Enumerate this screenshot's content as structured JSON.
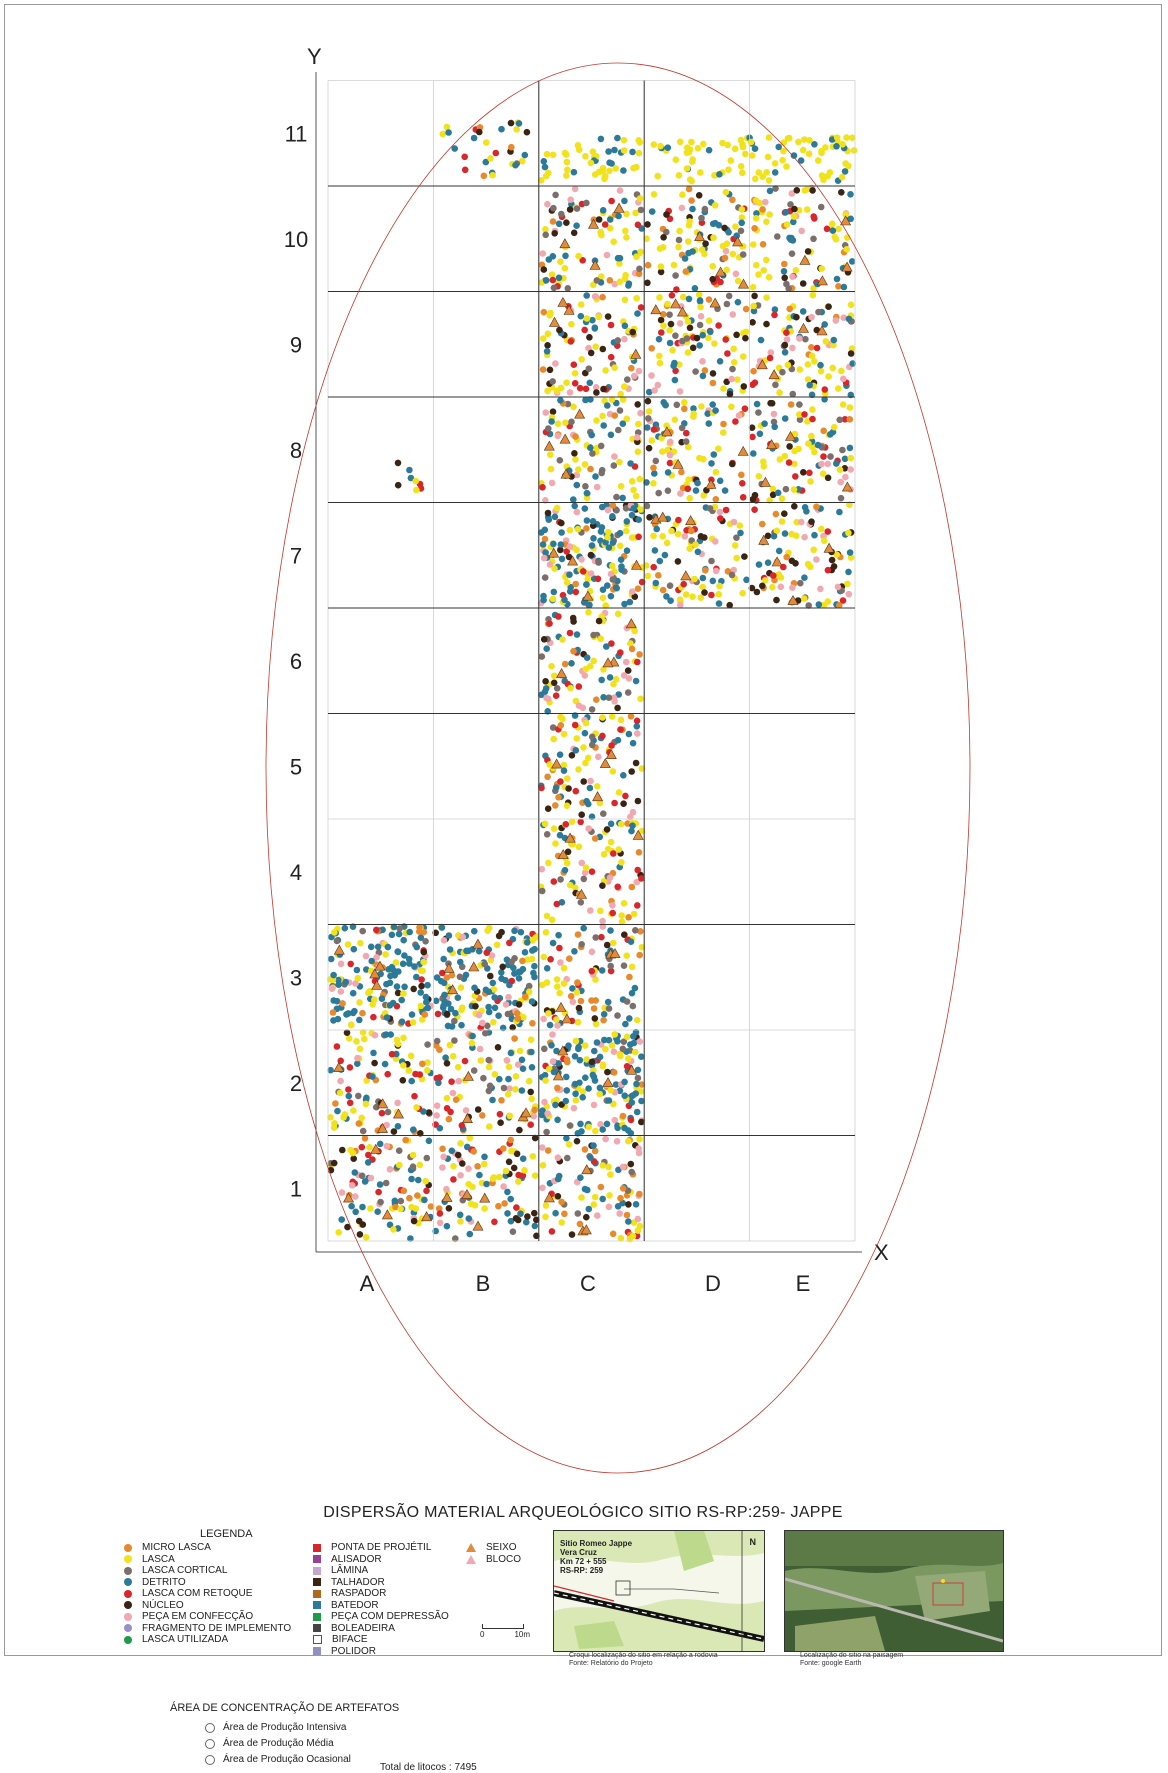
{
  "map": {
    "y_axis_label": "Y",
    "x_axis_label": "X",
    "rows": [
      "1",
      "2",
      "3",
      "4",
      "5",
      "6",
      "7",
      "8",
      "9",
      "10",
      "11"
    ],
    "columns": [
      "A",
      "B",
      "C",
      "D",
      "E"
    ],
    "excavated_units": [
      {
        "col": "A",
        "rows": [
          1,
          2,
          3
        ]
      },
      {
        "col": "B",
        "rows": [
          1,
          2,
          3
        ]
      },
      {
        "col": "C",
        "rows": [
          1,
          2,
          3,
          4,
          5,
          6,
          7,
          8,
          9,
          10
        ]
      },
      {
        "col": "D",
        "rows": [
          7,
          8,
          9,
          10
        ]
      },
      {
        "col": "E",
        "rows": [
          7,
          8,
          9,
          10
        ]
      }
    ],
    "concentration_outline": "ellipse"
  },
  "title": "DISPERSÃO MATERIAL ARQUEOLÓGICO SITIO RS-RP:259- JAPPE",
  "legend": {
    "title": "LEGENDA",
    "col1": [
      {
        "label": "MICRO LASCA",
        "shape": "circle",
        "color": "#e8892c"
      },
      {
        "label": "LASCA",
        "shape": "circle",
        "color": "#f2e21a"
      },
      {
        "label": "LASCA CORTICAL",
        "shape": "circle",
        "color": "#7b6f6b"
      },
      {
        "label": "DETRITO",
        "shape": "circle",
        "color": "#2c7a9a"
      },
      {
        "label": "LASCA COM RETOQUE",
        "shape": "circle",
        "color": "#d9262b"
      },
      {
        "label": "NÚCLEO",
        "shape": "circle",
        "color": "#3a2414"
      },
      {
        "label": "PEÇA EM CONFECÇÃO",
        "shape": "circle",
        "color": "#f2a8b0"
      },
      {
        "label": "FRAGMENTO DE IMPLEMENTO",
        "shape": "circle",
        "color": "#9a8fc7"
      },
      {
        "label": "LASCA UTILIZADA",
        "shape": "circle",
        "color": "#1e9a4a"
      }
    ],
    "col2": [
      {
        "label": "PONTA DE PROJÉTIL",
        "shape": "square",
        "color": "#d9262b"
      },
      {
        "label": "ALISADOR",
        "shape": "square",
        "color": "#9b3f96"
      },
      {
        "label": "LÂMINA",
        "shape": "square",
        "color": "#c7a6cf"
      },
      {
        "label": "TALHADOR",
        "shape": "square",
        "color": "#3a2414"
      },
      {
        "label": "RASPADOR",
        "shape": "square",
        "color": "#b06a1f"
      },
      {
        "label": "BATEDOR",
        "shape": "square",
        "color": "#2c7a9a"
      },
      {
        "label": "PEÇA COM DEPRESSÃO",
        "shape": "square",
        "color": "#1e9a4a"
      },
      {
        "label": "BOLEADEIRA",
        "shape": "square",
        "color": "#444444"
      },
      {
        "label": "BIFACE",
        "shape": "square-outline",
        "color": "#ffffff"
      },
      {
        "label": "POLIDOR",
        "shape": "square",
        "color": "#8f8fc0"
      }
    ],
    "col3": [
      {
        "label": "SEIXO",
        "shape": "triangle",
        "color": "#e08c3a"
      },
      {
        "label": "BLOCO",
        "shape": "triangle",
        "color": "#f2a8b0"
      }
    ]
  },
  "scale": {
    "start": "0",
    "end": "10m"
  },
  "concentration": {
    "title": "ÁREA DE CONCENTRAÇÃO DE ARTEFATOS",
    "items": [
      "Área de Produção Intensiva",
      "Área de Produção Média",
      "Área de Produção Ocasional"
    ],
    "total_label": "Total de litocos : 7495"
  },
  "sketch_inset": {
    "info_lines": [
      "Sitio Romeo Jappe",
      "Vera Cruz",
      "Km 72 + 555",
      "RS-RP: 259"
    ],
    "caption_lines": [
      "Croqui localização do sitio em relação a rodovia",
      "Fonte: Relatório do Projeto"
    ],
    "north": "N"
  },
  "satellite_inset": {
    "caption_lines": [
      "Localização do sitio na paisagem",
      "Fonte: google Earth"
    ],
    "watermark": "Google Earth"
  },
  "colors": {
    "lasca": "#f2e21a",
    "detrito": "#2c7a9a",
    "grid": "#222222",
    "ellipse": "#c0392b"
  }
}
